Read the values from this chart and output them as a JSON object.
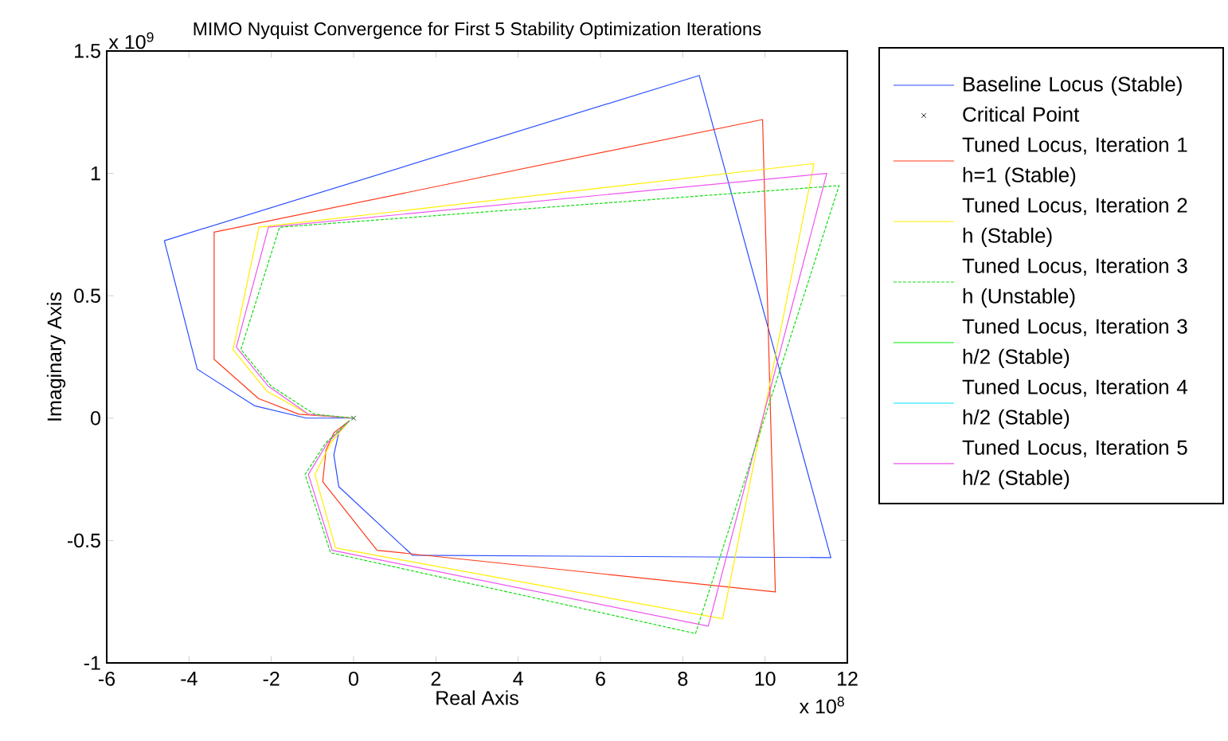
{
  "chart_data": {
    "type": "line",
    "title": "MIMO Nyquist Convergence for First 5 Stability Optimization Iterations",
    "xlabel": "Real Axis",
    "ylabel": "Imaginary Axis",
    "annotations": [
      "x 10$^{9}$",
      "x 10$^{8}$"
    ],
    "xlim": [
      -6,
      12
    ],
    "ylim": [
      -1,
      1.5
    ],
    "xticks": [
      -6,
      -4,
      -2,
      0,
      2,
      4,
      6,
      8,
      10,
      12
    ],
    "yticks": [
      -1,
      -0.5,
      0,
      0.5,
      1,
      1.5
    ],
    "legend": "right",
    "grid": false,
    "series": [
      {
        "name": "Baseline Locus (Stable)",
        "type": "line",
        "color": "#2a4fff",
        "line_style": "solid",
        "x": [
          0,
          -1.15,
          -2.4,
          -3.8,
          -4.6,
          8.4,
          11.6,
          1.43,
          -0.36,
          -0.48,
          -0.36,
          -0.1
        ],
        "values": [
          0,
          0.0,
          0.05,
          0.2,
          0.725,
          1.4,
          -0.57,
          -0.56,
          -0.28,
          -0.15,
          -0.06,
          -0.01
        ]
      },
      {
        "name": "Critical Point",
        "type": "scatter",
        "color": "#000000",
        "marker": "cross",
        "x": [
          0
        ],
        "values": [
          0
        ]
      },
      {
        "name": "Tuned Locus, Iteration 1 h=1 (Stable)",
        "type": "line",
        "color": "#ff3a1a",
        "line_style": "solid",
        "x": [
          0,
          -1.33,
          -2.31,
          -3.39,
          -3.39,
          9.94,
          10.25,
          0.57,
          -0.75,
          -0.67,
          -0.48,
          -0.1
        ],
        "values": [
          0,
          0.016,
          0.08,
          0.24,
          0.76,
          1.22,
          -0.71,
          -0.54,
          -0.26,
          -0.13,
          -0.06,
          -0.01
        ]
      },
      {
        "name": "Tuned Locus, Iteration 2 h (Stable)",
        "type": "line",
        "color": "#ffee00",
        "line_style": "solid",
        "x": [
          0,
          -1.1,
          -2.11,
          -2.93,
          -2.3,
          11.19,
          8.97,
          -0.44,
          -0.94,
          -0.55,
          -0.1
        ],
        "values": [
          0,
          0.016,
          0.11,
          0.28,
          0.78,
          1.04,
          -0.82,
          -0.53,
          -0.23,
          -0.1,
          -0.01
        ]
      },
      {
        "name": "Tuned Locus, Iteration 3 h (Unstable)",
        "type": "line",
        "color": "#11dd11",
        "line_style": "dashed",
        "x": [
          0,
          -0.95,
          -2.0,
          -2.74,
          -1.8,
          11.8,
          8.31,
          -0.56,
          -1.18,
          -0.67,
          -0.1
        ],
        "values": [
          0,
          0.016,
          0.13,
          0.28,
          0.78,
          0.95,
          -0.88,
          -0.55,
          -0.23,
          -0.1,
          -0.01
        ]
      },
      {
        "name": "Tuned Locus, Iteration 3 h/2 (Stable)",
        "type": "line",
        "color": "#00ee00",
        "line_style": "solid",
        "x": [
          null
        ],
        "values": [
          null
        ]
      },
      {
        "name": "Tuned Locus, Iteration 4 h/2 (Stable)",
        "type": "line",
        "color": "#00e5ff",
        "line_style": "solid",
        "x": [
          null
        ],
        "values": [
          null
        ]
      },
      {
        "name": "Tuned Locus, Iteration 5 h/2 (Stable)",
        "type": "line",
        "color": "#ee55ee",
        "line_style": "solid",
        "x": [
          0,
          -1.1,
          -2.07,
          -2.85,
          -2.07,
          11.5,
          8.62,
          -0.52,
          -1.1,
          -0.63,
          -0.1
        ],
        "values": [
          0,
          0.016,
          0.13,
          0.29,
          0.78,
          1.0,
          -0.85,
          -0.54,
          -0.23,
          -0.1,
          -0.01
        ]
      }
    ]
  }
}
